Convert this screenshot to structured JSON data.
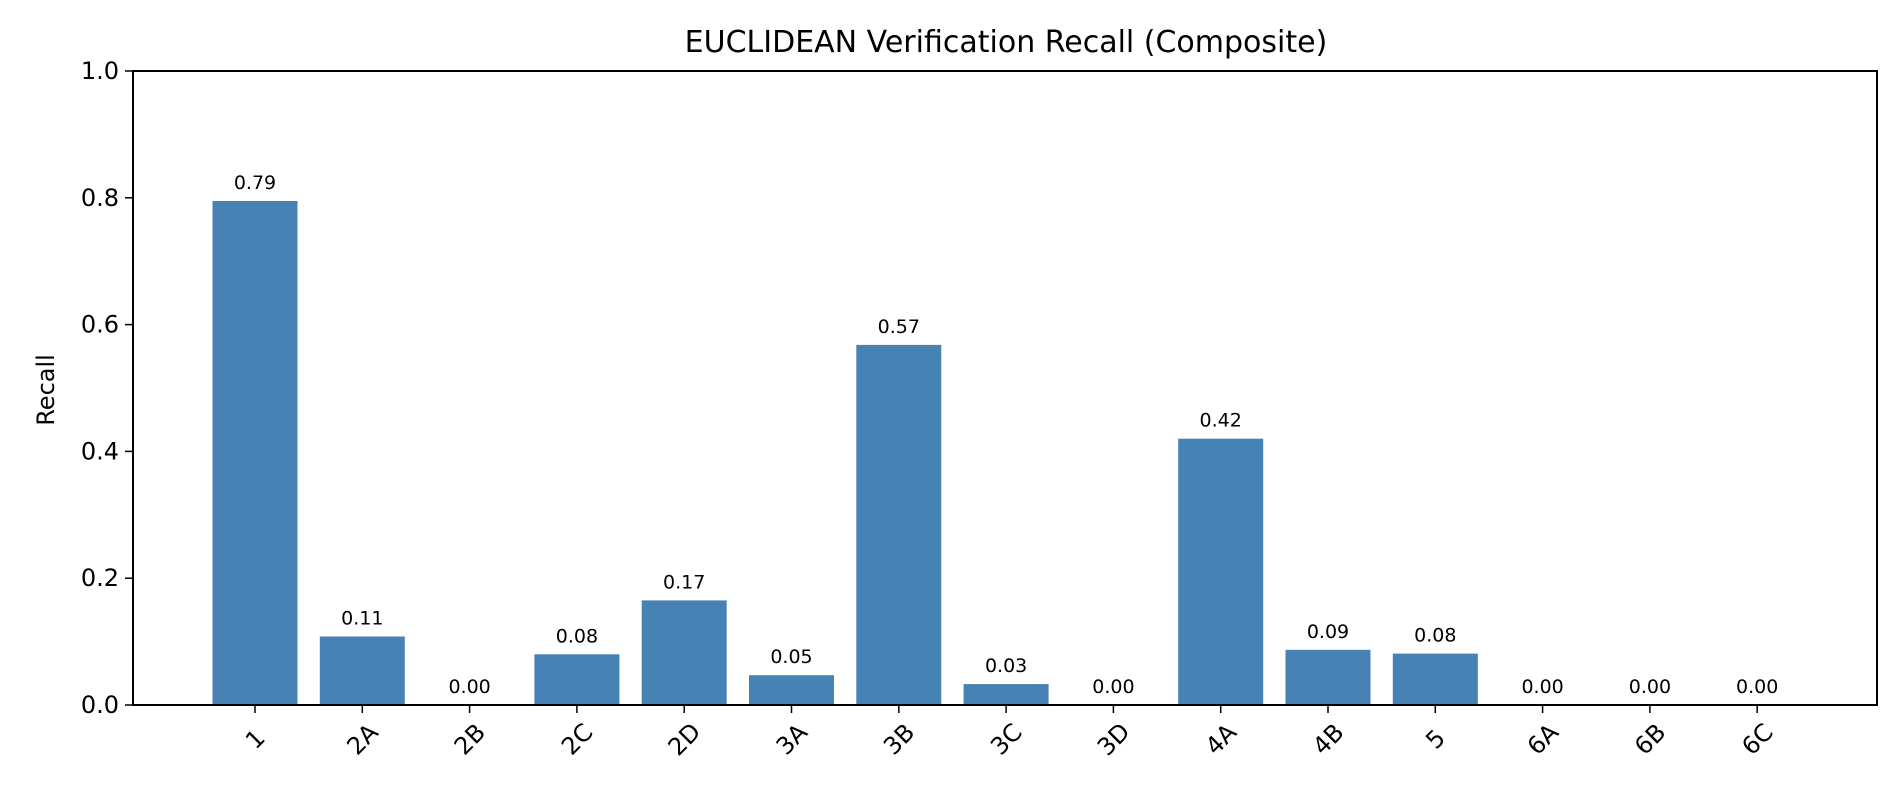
{
  "chart_data": {
    "type": "bar",
    "title": "EUCLIDEAN Verification Recall (Composite)",
    "xlabel": "",
    "ylabel": "Recall",
    "categories": [
      "1",
      "2A",
      "2B",
      "2C",
      "2D",
      "3A",
      "3B",
      "3C",
      "3D",
      "4A",
      "4B",
      "5",
      "6A",
      "6B",
      "6C"
    ],
    "values": [
      0.795,
      0.108,
      0.0,
      0.08,
      0.165,
      0.047,
      0.568,
      0.033,
      0.0,
      0.42,
      0.087,
      0.081,
      0.0,
      0.0,
      0.0
    ],
    "data_labels": [
      "0.79",
      "0.11",
      "0.00",
      "0.08",
      "0.17",
      "0.05",
      "0.57",
      "0.03",
      "0.00",
      "0.42",
      "0.09",
      "0.08",
      "0.00",
      "0.00",
      "0.00"
    ],
    "ylim": [
      0,
      1.0
    ],
    "yticks": [
      0.0,
      0.2,
      0.4,
      0.6,
      0.8,
      1.0
    ],
    "ytick_labels": [
      "0.0",
      "0.2",
      "0.4",
      "0.6",
      "0.8",
      "1.0"
    ],
    "bar_color": "#4682b4",
    "grid": false,
    "legend": "none"
  }
}
